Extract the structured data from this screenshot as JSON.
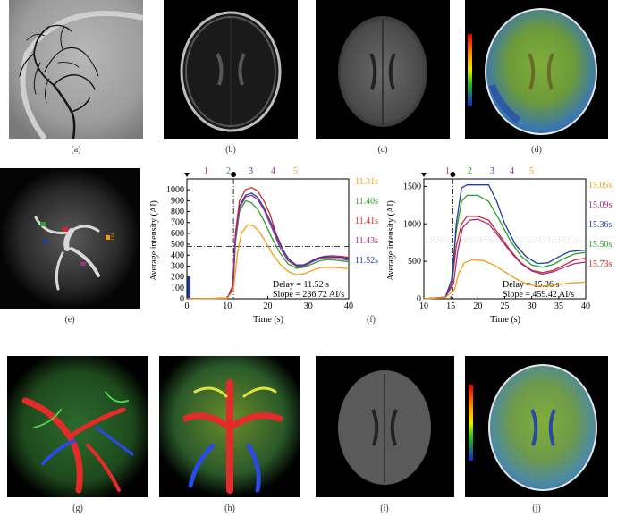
{
  "captions": {
    "a": "(a)",
    "b": "(b)",
    "c": "(c)",
    "d": "(d)",
    "e": "(e)",
    "f": "(f)",
    "g": "(g)",
    "h": "(h)",
    "i": "(i)",
    "j": "(j)"
  },
  "roi_labels": [
    "1",
    "2",
    "3",
    "4",
    "5"
  ],
  "colors": {
    "roi1": "#d62728",
    "roi2": "#2ca02c",
    "roi3": "#1f3fa0",
    "roi4": "#9e2f8f",
    "roi5": "#f39c12"
  },
  "chart_data": [
    {
      "type": "line",
      "xlabel": "Time (s)",
      "ylabel": "Average intensity (AI)",
      "xlim": [
        0,
        40
      ],
      "ylim": [
        0,
        1100
      ],
      "xticks": [
        "0",
        "10",
        "20",
        "30",
        "40"
      ],
      "yticks": [
        "0",
        "100",
        "200",
        "300",
        "400",
        "500",
        "600",
        "700",
        "800",
        "900",
        "1000"
      ],
      "threshold": 480,
      "delay_line_x": 11.52,
      "legend_labels": [
        "1",
        "2",
        "3",
        "4",
        "5"
      ],
      "times": [
        "11.31s",
        "11.40s",
        "11.41s",
        "11.43s",
        "11.52s"
      ],
      "annotation_delay": "Delay = 11.52 s",
      "annotation_slope": "Slope = 286.72 AI/s",
      "series": [
        {
          "values": [
            [
              0,
              0
            ],
            [
              10,
              5
            ],
            [
              11.3,
              120
            ],
            [
              12,
              600
            ],
            [
              13,
              900
            ],
            [
              14.5,
              1000
            ],
            [
              16,
              1020
            ],
            [
              17.5,
              990
            ],
            [
              19,
              900
            ],
            [
              20.5,
              780
            ],
            [
              22,
              600
            ],
            [
              24,
              430
            ],
            [
              26,
              320
            ],
            [
              28,
              300
            ],
            [
              30,
              330
            ],
            [
              32,
              370
            ],
            [
              34,
              390
            ],
            [
              36,
              395
            ],
            [
              38,
              390
            ],
            [
              40,
              380
            ]
          ]
        },
        {
          "values": [
            [
              0,
              0
            ],
            [
              10,
              5
            ],
            [
              11.4,
              100
            ],
            [
              12,
              520
            ],
            [
              13,
              800
            ],
            [
              14.5,
              900
            ],
            [
              16,
              880
            ],
            [
              17.5,
              820
            ],
            [
              19,
              720
            ],
            [
              21,
              560
            ],
            [
              23,
              420
            ],
            [
              25,
              320
            ],
            [
              27,
              280
            ],
            [
              29,
              290
            ],
            [
              31,
              320
            ],
            [
              33,
              350
            ],
            [
              35,
              360
            ],
            [
              38,
              350
            ],
            [
              40,
              340
            ]
          ]
        },
        {
          "values": [
            [
              0,
              0
            ],
            [
              10,
              5
            ],
            [
              11.4,
              110
            ],
            [
              12,
              560
            ],
            [
              13,
              850
            ],
            [
              14.5,
              950
            ],
            [
              16,
              970
            ],
            [
              17.5,
              930
            ],
            [
              19,
              840
            ],
            [
              21,
              680
            ],
            [
              23,
              500
            ],
            [
              25,
              370
            ],
            [
              27,
              310
            ],
            [
              29,
              310
            ],
            [
              31,
              350
            ],
            [
              33,
              380
            ],
            [
              35,
              385
            ],
            [
              38,
              380
            ],
            [
              40,
              370
            ]
          ]
        },
        {
          "values": [
            [
              0,
              0
            ],
            [
              10,
              5
            ],
            [
              11.4,
              100
            ],
            [
              12,
              540
            ],
            [
              13,
              830
            ],
            [
              14.5,
              935
            ],
            [
              16,
              950
            ],
            [
              17.5,
              910
            ],
            [
              19,
              820
            ],
            [
              21,
              650
            ],
            [
              23,
              470
            ],
            [
              25,
              350
            ],
            [
              27,
              300
            ],
            [
              29,
              300
            ],
            [
              31,
              340
            ],
            [
              33,
              370
            ],
            [
              35,
              370
            ],
            [
              38,
              365
            ],
            [
              40,
              355
            ]
          ]
        },
        {
          "values": [
            [
              0,
              0
            ],
            [
              10,
              5
            ],
            [
              11.5,
              80
            ],
            [
              12.5,
              420
            ],
            [
              13.5,
              600
            ],
            [
              15,
              680
            ],
            [
              16.5,
              670
            ],
            [
              18,
              610
            ],
            [
              19.5,
              520
            ],
            [
              21,
              420
            ],
            [
              23,
              320
            ],
            [
              25,
              250
            ],
            [
              27,
              220
            ],
            [
              29,
              230
            ],
            [
              31,
              260
            ],
            [
              33,
              285
            ],
            [
              35,
              290
            ],
            [
              38,
              285
            ],
            [
              40,
              275
            ]
          ]
        }
      ]
    },
    {
      "type": "line",
      "xlabel": "Time (s)",
      "ylabel": "Average intensity (AI)",
      "xlim": [
        10,
        40
      ],
      "ylim": [
        0,
        1600
      ],
      "xticks": [
        "10",
        "15",
        "20",
        "25",
        "30",
        "35",
        "40"
      ],
      "yticks": [
        "0",
        "500",
        "1000",
        "1500"
      ],
      "threshold": 760,
      "delay_line_x": 15.36,
      "legend_labels": [
        "1",
        "2",
        "3",
        "4",
        "5"
      ],
      "times": [
        "15.05s",
        "15.09s",
        "15.36s",
        "15.50s",
        "15.73s"
      ],
      "annotation_delay": "Delay = 15.36 s",
      "annotation_slope": "Slope = 459.42 AI/s",
      "series": [
        {
          "values": [
            [
              10,
              0
            ],
            [
              14,
              20
            ],
            [
              15.2,
              200
            ],
            [
              16,
              700
            ],
            [
              17,
              1000
            ],
            [
              18,
              1100
            ],
            [
              20,
              1100
            ],
            [
              22,
              1050
            ],
            [
              24,
              850
            ],
            [
              26,
              650
            ],
            [
              28,
              480
            ],
            [
              30,
              380
            ],
            [
              32,
              350
            ],
            [
              34,
              380
            ],
            [
              36,
              450
            ],
            [
              38,
              520
            ],
            [
              40,
              540
            ]
          ]
        },
        {
          "values": [
            [
              10,
              0
            ],
            [
              14,
              20
            ],
            [
              15.1,
              250
            ],
            [
              16,
              900
            ],
            [
              17,
              1300
            ],
            [
              18,
              1380
            ],
            [
              20,
              1380
            ],
            [
              22,
              1300
            ],
            [
              24,
              1050
            ],
            [
              26,
              780
            ],
            [
              28,
              570
            ],
            [
              30,
              450
            ],
            [
              32,
              420
            ],
            [
              34,
              460
            ],
            [
              36,
              540
            ],
            [
              38,
              600
            ],
            [
              40,
              620
            ]
          ]
        },
        {
          "values": [
            [
              10,
              0
            ],
            [
              14,
              20
            ],
            [
              15.3,
              280
            ],
            [
              16,
              1000
            ],
            [
              17,
              1480
            ],
            [
              18,
              1520
            ],
            [
              21,
              1520
            ],
            [
              22,
              1520
            ],
            [
              23.5,
              1300
            ],
            [
              25,
              1000
            ],
            [
              27,
              720
            ],
            [
              29,
              560
            ],
            [
              31,
              470
            ],
            [
              33,
              480
            ],
            [
              35,
              560
            ],
            [
              37,
              630
            ],
            [
              40,
              650
            ]
          ]
        },
        {
          "values": [
            [
              10,
              0
            ],
            [
              14,
              20
            ],
            [
              15.5,
              200
            ],
            [
              16.3,
              650
            ],
            [
              17.2,
              950
            ],
            [
              18.5,
              1050
            ],
            [
              20,
              1060
            ],
            [
              22,
              1000
            ],
            [
              24,
              820
            ],
            [
              26,
              630
            ],
            [
              28,
              470
            ],
            [
              30,
              370
            ],
            [
              32,
              330
            ],
            [
              34,
              360
            ],
            [
              36,
              420
            ],
            [
              38,
              470
            ],
            [
              40,
              490
            ]
          ]
        },
        {
          "values": [
            [
              10,
              0
            ],
            [
              14,
              15
            ],
            [
              15.7,
              120
            ],
            [
              16.5,
              350
            ],
            [
              17.5,
              480
            ],
            [
              19,
              520
            ],
            [
              21,
              510
            ],
            [
              23,
              450
            ],
            [
              25,
              360
            ],
            [
              27,
              270
            ],
            [
              29,
              200
            ],
            [
              31,
              170
            ],
            [
              33,
              170
            ],
            [
              35,
              190
            ],
            [
              37,
              210
            ],
            [
              40,
              220
            ]
          ]
        }
      ]
    }
  ]
}
